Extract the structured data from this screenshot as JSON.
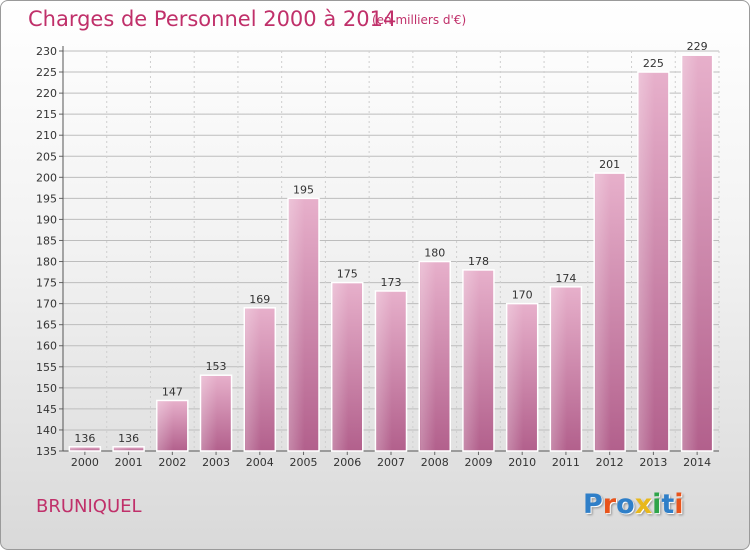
{
  "header": {
    "title": "Charges de Personnel 2000 à 2014",
    "subtitle": "(en milliers d'€)"
  },
  "footer": {
    "commune": "BRUNIQUEL",
    "logo_letters": [
      "P",
      "r",
      "o",
      "x",
      "i",
      "t",
      "i"
    ],
    "logo_colors": [
      "#2f7fc8",
      "#e8541b",
      "#2f7fc8",
      "#e8b81b",
      "#2fa44a",
      "#2f7fc8",
      "#e8541b"
    ]
  },
  "chart_data": {
    "type": "bar",
    "categories": [
      "2000",
      "2001",
      "2002",
      "2003",
      "2004",
      "2005",
      "2006",
      "2007",
      "2008",
      "2009",
      "2010",
      "2011",
      "2012",
      "2013",
      "2014"
    ],
    "values": [
      136,
      136,
      147,
      153,
      169,
      195,
      175,
      173,
      180,
      178,
      170,
      174,
      201,
      225,
      229
    ],
    "data_labels": [
      "136",
      "136",
      "147",
      "153",
      "169",
      "195",
      "175",
      "173",
      "180",
      "178",
      "170",
      "174",
      "201",
      "225",
      "229"
    ],
    "ylim": [
      135,
      230
    ],
    "yticks": [
      "135",
      "140",
      "145",
      "150",
      "155",
      "160",
      "165",
      "170",
      "175",
      "180",
      "185",
      "190",
      "195",
      "200",
      "205",
      "210",
      "215",
      "220",
      "225",
      "230"
    ],
    "grid": true,
    "bar_color": "#d98cb0"
  }
}
